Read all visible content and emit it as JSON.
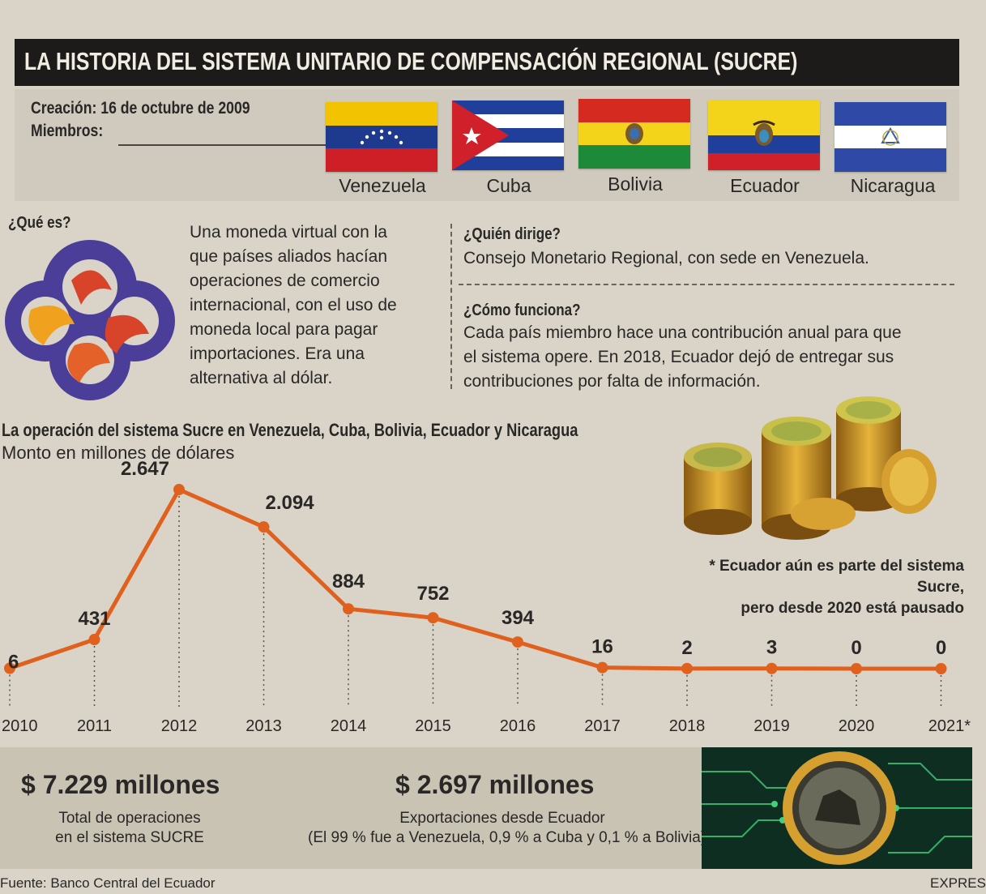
{
  "header": {
    "title": "LA HISTORIA DEL SISTEMA UNITARIO DE COMPENSACIÓN REGIONAL (SUCRE)"
  },
  "info": {
    "creation": "Creación: 16 de octubre de 2009",
    "members_label": "Miembros:",
    "members": [
      "Venezuela",
      "Cuba",
      "Bolivia",
      "Ecuador",
      "Nicaragua"
    ]
  },
  "what": {
    "title": "¿Qué es?",
    "lines": [
      "Una moneda virtual con la",
      "que países aliados hacían",
      "operaciones de comercio",
      "internacional, con el uso de",
      "moneda local para pagar",
      "importaciones. Era una",
      "alternativa al dólar."
    ]
  },
  "who": {
    "title": "¿Quién dirige?",
    "text": "Consejo Monetario Regional, con sede en Venezuela."
  },
  "how": {
    "title": "¿Cómo funciona?",
    "lines": [
      "Cada país miembro hace una contribución anual para que",
      "el sistema opere. En 2018, Ecuador dejó de entregar sus",
      "contribuciones por falta de información."
    ]
  },
  "chart_data": {
    "type": "line",
    "title": "La operación del sistema Sucre en Venezuela, Cuba, Bolivia, Ecuador y Nicaragua",
    "subtitle": "Monto en millones de dólares",
    "categories": [
      "2010",
      "2011",
      "2012",
      "2013",
      "2014",
      "2015",
      "2016",
      "2017",
      "2018",
      "2019",
      "2020",
      "2021*"
    ],
    "values": [
      6,
      431,
      2647,
      2094,
      884,
      752,
      394,
      16,
      2,
      3,
      0,
      0
    ],
    "value_labels": [
      "6",
      "431",
      "2.647",
      "2.094",
      "884",
      "752",
      "394",
      "16",
      "2",
      "3",
      "0",
      "0"
    ],
    "ylim": [
      0,
      2647
    ],
    "grid": false,
    "line_color": "#e0601e",
    "footnote": [
      "* Ecuador aún es parte del sistema Sucre,",
      "pero desde 2020 está pausado"
    ]
  },
  "stats": {
    "total_value": "$ 7.229 millones",
    "total_desc": [
      "Total de operaciones",
      "en el sistema SUCRE"
    ],
    "exports_value": "$ 2.697 millones",
    "exports_desc": [
      "Exportaciones desde Ecuador",
      "(El 99 % fue a Venezuela, 0,9 % a Cuba y 0,1 % a Bolivia)"
    ]
  },
  "footer": {
    "source": "Fuente: Banco Central del Ecuador",
    "credit": "EXPRES"
  },
  "icons": [
    "sucre-logo-icon",
    "gold-coins-icon",
    "sucre-coin-icon"
  ],
  "colors": {
    "accent_orange": "#e0601e",
    "title_bar": "#1c1b1a",
    "logo_purple": "#4b3e99"
  }
}
